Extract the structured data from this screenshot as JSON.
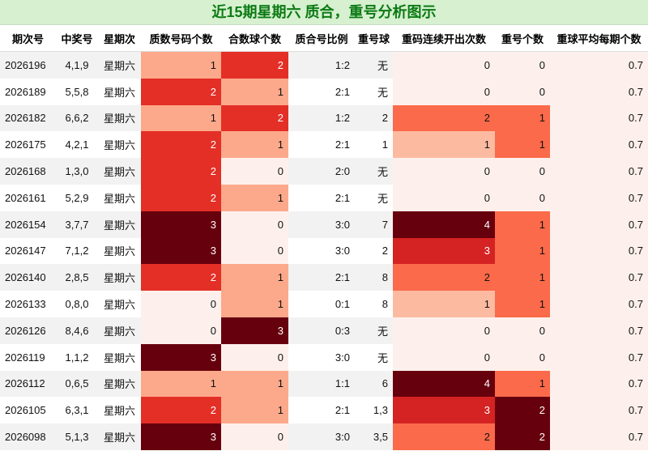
{
  "title": "近15期星期六 质合，重号分析图示",
  "columns": [
    "期次号",
    "中奖号",
    "星期次",
    "质数号码个数",
    "合数球个数",
    "质合号比例",
    "重号球",
    "重码连续开出次数",
    "重号个数",
    "重球平均每期个数"
  ],
  "colors": {
    "prime": {
      "0": "#fdf0ec",
      "1": "#fca98b",
      "2": "#e32f26",
      "3": "#67000d"
    },
    "composite": {
      "0": "#fdf0ec",
      "1": "#fca98b",
      "2": "#e32f26",
      "3": "#67000d"
    },
    "streak": {
      "0": "#fdf0ec",
      "1": "#fcbba1",
      "2": "#fb6a4a",
      "3": "#d42322",
      "4": "#67000d"
    },
    "repcount": {
      "0": "#fdf0ec",
      "1": "#fb6a4a",
      "2": "#67000d"
    },
    "avg_bg": "#fdf0ec"
  },
  "rows": [
    {
      "issue": "2026196",
      "number": "4,1,9",
      "weekday": "星期六",
      "prime": "1",
      "composite": "2",
      "ratio": "1:2",
      "repeat": "无",
      "streak": "0",
      "repcount": "0",
      "avg": "0.7"
    },
    {
      "issue": "2026189",
      "number": "5,5,8",
      "weekday": "星期六",
      "prime": "2",
      "composite": "1",
      "ratio": "2:1",
      "repeat": "无",
      "streak": "0",
      "repcount": "0",
      "avg": "0.7"
    },
    {
      "issue": "2026182",
      "number": "6,6,2",
      "weekday": "星期六",
      "prime": "1",
      "composite": "2",
      "ratio": "1:2",
      "repeat": "2",
      "streak": "2",
      "repcount": "1",
      "avg": "0.7"
    },
    {
      "issue": "2026175",
      "number": "4,2,1",
      "weekday": "星期六",
      "prime": "2",
      "composite": "1",
      "ratio": "2:1",
      "repeat": "1",
      "streak": "1",
      "repcount": "1",
      "avg": "0.7"
    },
    {
      "issue": "2026168",
      "number": "1,3,0",
      "weekday": "星期六",
      "prime": "2",
      "composite": "0",
      "ratio": "2:0",
      "repeat": "无",
      "streak": "0",
      "repcount": "0",
      "avg": "0.7"
    },
    {
      "issue": "2026161",
      "number": "5,2,9",
      "weekday": "星期六",
      "prime": "2",
      "composite": "1",
      "ratio": "2:1",
      "repeat": "无",
      "streak": "0",
      "repcount": "0",
      "avg": "0.7"
    },
    {
      "issue": "2026154",
      "number": "3,7,7",
      "weekday": "星期六",
      "prime": "3",
      "composite": "0",
      "ratio": "3:0",
      "repeat": "7",
      "streak": "4",
      "repcount": "1",
      "avg": "0.7"
    },
    {
      "issue": "2026147",
      "number": "7,1,2",
      "weekday": "星期六",
      "prime": "3",
      "composite": "0",
      "ratio": "3:0",
      "repeat": "2",
      "streak": "3",
      "repcount": "1",
      "avg": "0.7"
    },
    {
      "issue": "2026140",
      "number": "2,8,5",
      "weekday": "星期六",
      "prime": "2",
      "composite": "1",
      "ratio": "2:1",
      "repeat": "8",
      "streak": "2",
      "repcount": "1",
      "avg": "0.7"
    },
    {
      "issue": "2026133",
      "number": "0,8,0",
      "weekday": "星期六",
      "prime": "0",
      "composite": "1",
      "ratio": "0:1",
      "repeat": "8",
      "streak": "1",
      "repcount": "1",
      "avg": "0.7"
    },
    {
      "issue": "2026126",
      "number": "8,4,6",
      "weekday": "星期六",
      "prime": "0",
      "composite": "3",
      "ratio": "0:3",
      "repeat": "无",
      "streak": "0",
      "repcount": "0",
      "avg": "0.7"
    },
    {
      "issue": "2026119",
      "number": "1,1,2",
      "weekday": "星期六",
      "prime": "3",
      "composite": "0",
      "ratio": "3:0",
      "repeat": "无",
      "streak": "0",
      "repcount": "0",
      "avg": "0.7"
    },
    {
      "issue": "2026112",
      "number": "0,6,5",
      "weekday": "星期六",
      "prime": "1",
      "composite": "1",
      "ratio": "1:1",
      "repeat": "6",
      "streak": "4",
      "repcount": "1",
      "avg": "0.7"
    },
    {
      "issue": "2026105",
      "number": "6,3,1",
      "weekday": "星期六",
      "prime": "2",
      "composite": "1",
      "ratio": "2:1",
      "repeat": "1,3",
      "streak": "3",
      "repcount": "2",
      "avg": "0.7"
    },
    {
      "issue": "2026098",
      "number": "5,1,3",
      "weekday": "星期六",
      "prime": "3",
      "composite": "0",
      "ratio": "3:0",
      "repeat": "3,5",
      "streak": "2",
      "repcount": "2",
      "avg": "0.7"
    }
  ]
}
